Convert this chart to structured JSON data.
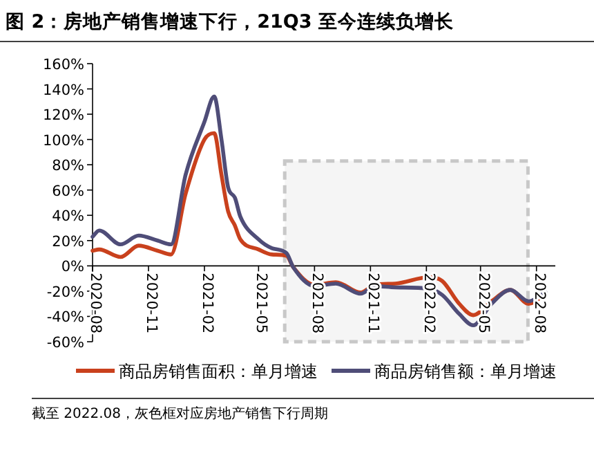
{
  "chart_data": {
    "type": "line",
    "title": "图 2：房地产销售增速下行，21Q3 至今连续负增长",
    "x": [
      "2020-08-01",
      "2020-08-12",
      "2020-09-16",
      "2020-10-16",
      "2020-11-16",
      "2020-12-08",
      "2021-01-01",
      "2021-02-01",
      "2021-02-17",
      "2021-03-01",
      "2021-03-12",
      "2021-03-23",
      "2021-04-01",
      "2021-05-01",
      "2021-05-23",
      "2021-06-16",
      "2021-06-27",
      "2021-08-01",
      "2021-09-05",
      "2021-10-16",
      "2021-11-08",
      "2021-12-12",
      "2022-02-05",
      "2022-02-27",
      "2022-03-27",
      "2022-04-19",
      "2022-05-19",
      "2022-06-19",
      "2022-07-19",
      "2022-08-16"
    ],
    "series": [
      {
        "name": "商品房销售面积：单月增速",
        "color": "#c9411d",
        "values": [
          12,
          13,
          7,
          16,
          12,
          9,
          57,
          100,
          105,
          72,
          43,
          32,
          21,
          13,
          9,
          8,
          -1,
          -15,
          -13,
          -21,
          -15,
          -14,
          -9,
          -12,
          -30,
          -39,
          -28,
          -19,
          -30,
          -22
        ]
      },
      {
        "name": "商品房销售额：单月增速",
        "color": "#4f4d78",
        "values": [
          23,
          28,
          17,
          24,
          20,
          17,
          72,
          114,
          134,
          100,
          62,
          54,
          39,
          21,
          14,
          10,
          -1,
          -16,
          -14,
          -22,
          -16,
          -17,
          -18,
          -23,
          -38,
          -47,
          -30,
          -19,
          -28,
          -21
        ]
      }
    ],
    "xlim": [
      "2020-08-01",
      "2022-09-01"
    ],
    "xticks": [
      {
        "value": "2020-08-01",
        "label": "2020-08"
      },
      {
        "value": "2020-11-01",
        "label": "2020-11"
      },
      {
        "value": "2021-02-01",
        "label": "2021-02"
      },
      {
        "value": "2021-05-01",
        "label": "2021-05"
      },
      {
        "value": "2021-08-01",
        "label": "2021-08"
      },
      {
        "value": "2021-11-01",
        "label": "2021-11"
      },
      {
        "value": "2022-02-01",
        "label": "2022-02"
      },
      {
        "value": "2022-05-01",
        "label": "2022-05"
      },
      {
        "value": "2022-08-01",
        "label": "2022-08"
      }
    ],
    "ylim": [
      -60,
      160
    ],
    "yticks": [
      {
        "value": -60,
        "label": "-60%"
      },
      {
        "value": -40,
        "label": "-40%"
      },
      {
        "value": -20,
        "label": "-20%"
      },
      {
        "value": 0,
        "label": "0%"
      },
      {
        "value": 20,
        "label": "20%"
      },
      {
        "value": 40,
        "label": "40%"
      },
      {
        "value": 60,
        "label": "60%"
      },
      {
        "value": 80,
        "label": "80%"
      },
      {
        "value": 100,
        "label": "100%"
      },
      {
        "value": 120,
        "label": "120%"
      },
      {
        "value": 140,
        "label": "140%"
      },
      {
        "value": 160,
        "label": "160%"
      }
    ],
    "bands": [
      {
        "axis": "x",
        "from": "2021-06-13",
        "to": "2022-07-18",
        "color": "#c8c8c8"
      }
    ],
    "annotations": [
      "截至 2022.08，灰色框对应房地产销售下行周期"
    ],
    "legend": "bottom",
    "grid": false,
    "marker": "none",
    "line_style": "solid"
  }
}
